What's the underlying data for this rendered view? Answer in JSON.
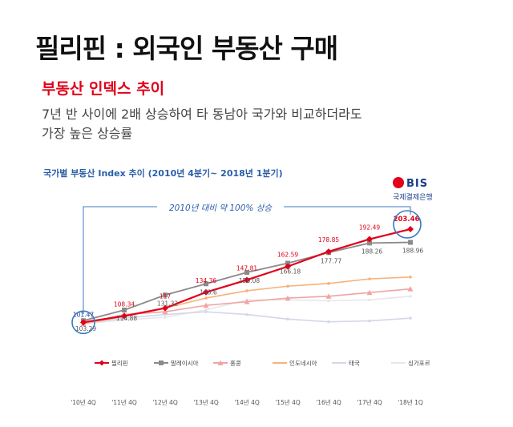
{
  "page": {
    "title": "필리핀 : 외국인 부동산 구매",
    "subtitle": "부동산 인덱스 추이",
    "desc_line1": "7년 반 사이에 2배 상승하여 타 동남아 국가와 비교하더라도",
    "desc_line2": "가장 높은 상승률"
  },
  "logo": {
    "name": "BIS",
    "sub": "국제결제은행",
    "color": "#1a3c8c"
  },
  "chart_data": {
    "type": "line",
    "title": "국가별 부동산 Index 추이 (2010년 4분기~ 2018년 1분기)",
    "annotation": "2010년 대비 약 100% 상승",
    "categories": [
      "'10년 4Q",
      "'11년 4Q",
      "'12년 4Q",
      "'13년 4Q",
      "'14년 4Q",
      "'15년 4Q",
      "'16년 4Q",
      "'17년 4Q",
      "'18년 1Q"
    ],
    "ylim": [
      80,
      215
    ],
    "legend_position": "bottom",
    "series": [
      {
        "name": "필리핀",
        "color": "#e2001a",
        "marker": "diamond",
        "labeled": true,
        "values": [
          101.47,
          108.34,
          117,
          134.36,
          147.81,
          162.59,
          178.85,
          192.49,
          203.46
        ]
      },
      {
        "name": "말레이시아",
        "color": "#8a8a8a",
        "marker": "square",
        "labeled": true,
        "values": [
          103.29,
          114.88,
          131.32,
          143.6,
          156.08,
          166.18,
          177.77,
          188.26,
          188.96
        ]
      },
      {
        "name": "홍콩",
        "color": "#f0a4a4",
        "marker": "triangle",
        "labeled": false,
        "values": [
          100,
          110,
          113,
          120,
          124,
          128,
          130,
          134,
          138
        ]
      },
      {
        "name": "인도네시아",
        "color": "#f7b27a",
        "marker": "none",
        "labeled": false,
        "values": [
          100,
          108,
          117,
          128,
          136,
          141,
          144,
          149,
          151
        ]
      },
      {
        "name": "태국",
        "color": "#d3d8e8",
        "marker": "none",
        "labeled": false,
        "values": [
          100,
          106,
          110,
          113,
          110,
          105,
          102,
          103,
          106
        ]
      },
      {
        "name": "싱가포르",
        "color": "#e8e8e8",
        "marker": "none",
        "labeled": false,
        "values": [
          100,
          104,
          107,
          115,
          126,
          126,
          125,
          126,
          130
        ]
      }
    ]
  }
}
